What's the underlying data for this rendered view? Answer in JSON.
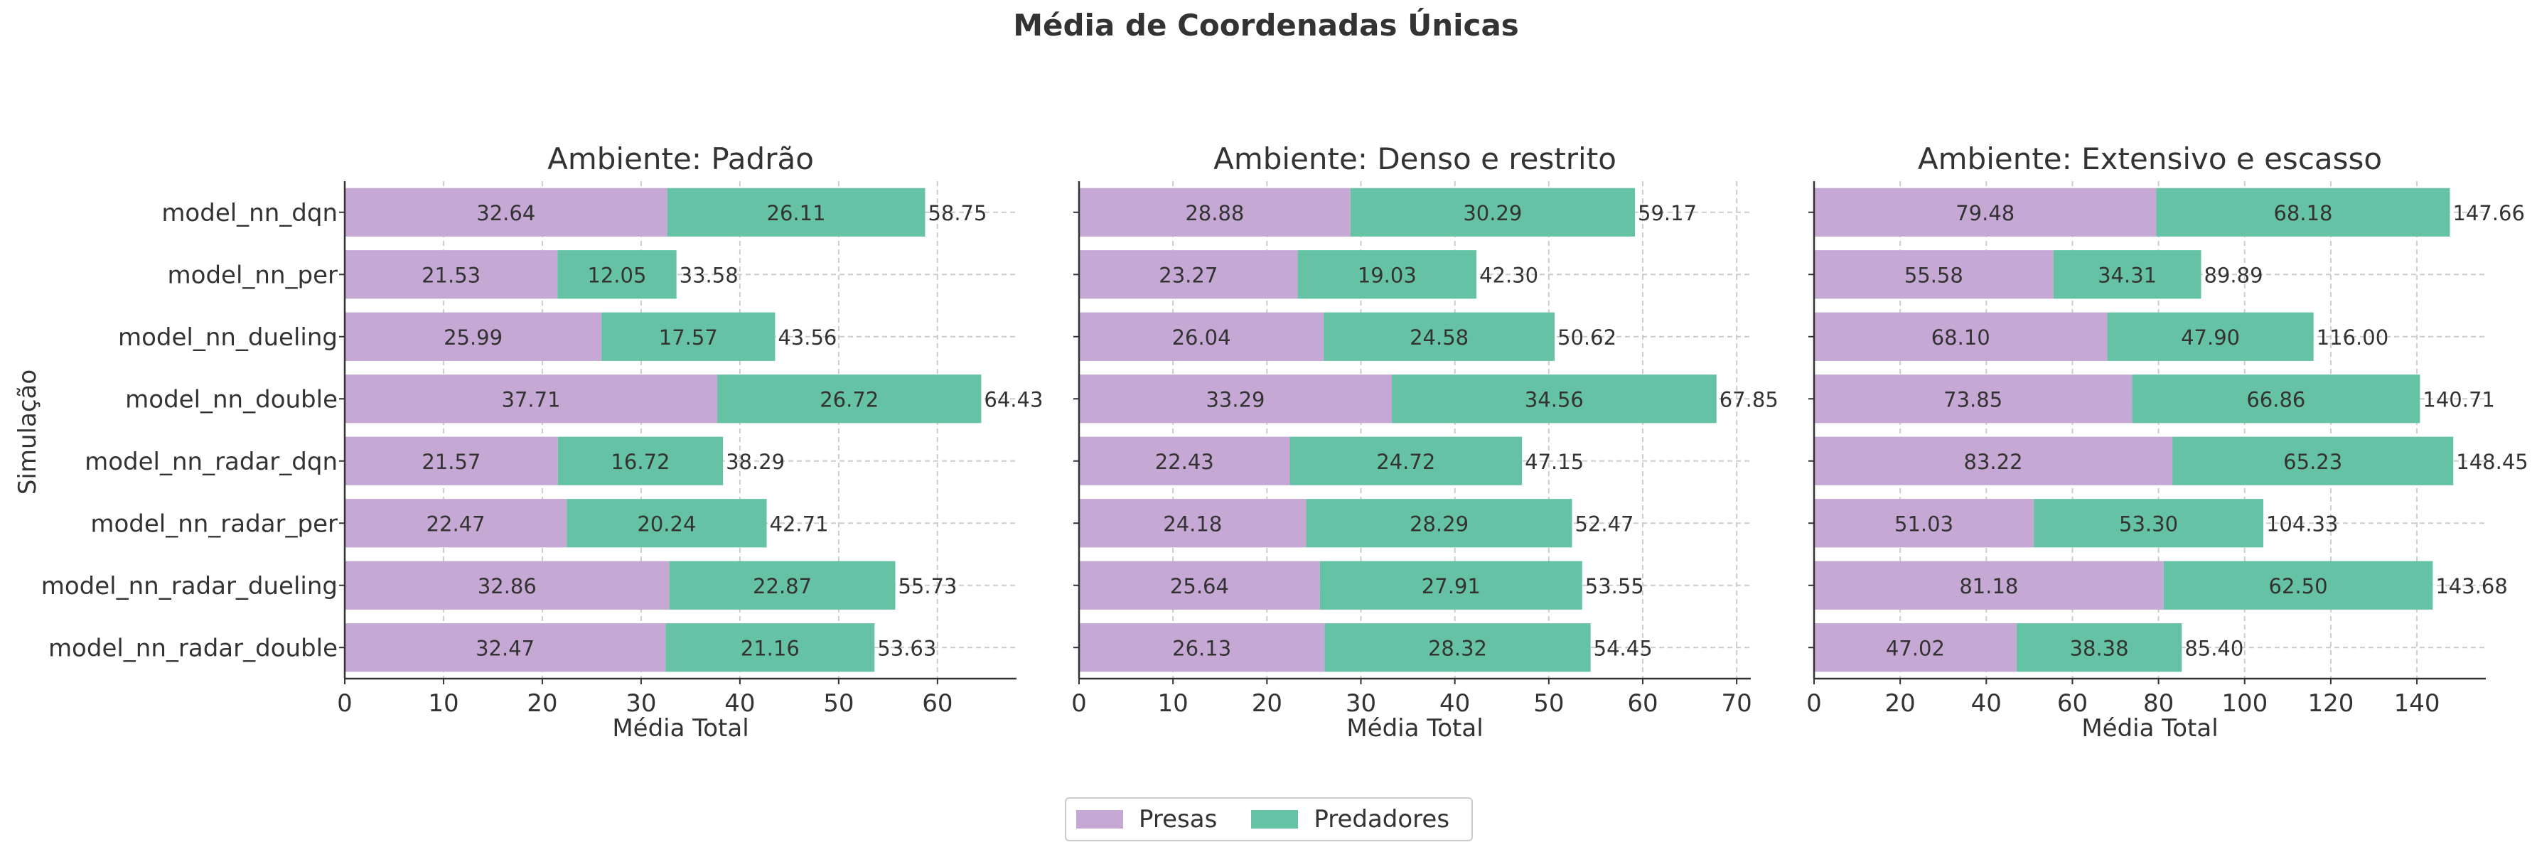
{
  "chart_data": {
    "type": "bar",
    "orientation": "horizontal",
    "stacked": true,
    "title": "Média de Coordenadas Únicas",
    "ylabel": "Simulação",
    "grid": true,
    "legend_position": "bottom-center",
    "categories": [
      "model_nn_dqn",
      "model_nn_per",
      "model_nn_dueling",
      "model_nn_double",
      "model_nn_radar_dqn",
      "model_nn_radar_per",
      "model_nn_radar_dueling",
      "model_nn_radar_double"
    ],
    "series_info": [
      {
        "name": "Presas",
        "color": "#c5a8d4"
      },
      {
        "name": "Predadores",
        "color": "#66c2a5"
      }
    ],
    "panels": [
      {
        "title": "Ambiente: Padrão",
        "xlabel": "Média Total",
        "xlim": [
          0,
          68
        ],
        "xticks": [
          0,
          10,
          20,
          30,
          40,
          50,
          60
        ],
        "presas": [
          32.64,
          21.53,
          25.99,
          37.71,
          21.57,
          22.47,
          32.86,
          32.47
        ],
        "predadores": [
          26.11,
          12.05,
          17.57,
          26.72,
          16.72,
          20.24,
          22.87,
          21.16
        ],
        "totals": [
          "58.75",
          "33.58",
          "43.56",
          "64.43",
          "38.29",
          "42.71",
          "55.73",
          "53.63"
        ]
      },
      {
        "title": "Ambiente: Denso e restrito",
        "xlabel": "Média Total",
        "xlim": [
          0,
          71.5
        ],
        "xticks": [
          0,
          10,
          20,
          30,
          40,
          50,
          60,
          70
        ],
        "presas": [
          28.88,
          23.27,
          26.04,
          33.29,
          22.43,
          24.18,
          25.64,
          26.13
        ],
        "predadores": [
          30.29,
          19.03,
          24.58,
          34.56,
          24.72,
          28.29,
          27.91,
          28.32
        ],
        "totals": [
          "59.17",
          "42.30",
          "50.62",
          "67.85",
          "47.15",
          "52.47",
          "53.55",
          "54.45"
        ]
      },
      {
        "title": "Ambiente: Extensivo e escasso",
        "xlabel": "Média Total",
        "xlim": [
          0,
          156
        ],
        "xticks": [
          0,
          20,
          40,
          60,
          80,
          100,
          120,
          140
        ],
        "presas": [
          79.48,
          55.58,
          68.1,
          73.85,
          83.22,
          51.03,
          81.18,
          47.02
        ],
        "predadores": [
          68.18,
          34.31,
          47.9,
          66.86,
          65.23,
          53.3,
          62.5,
          38.38
        ],
        "totals": [
          "147.66",
          "89.89",
          "116.00",
          "140.71",
          "148.45",
          "104.33",
          "143.68",
          "85.40"
        ]
      }
    ]
  }
}
